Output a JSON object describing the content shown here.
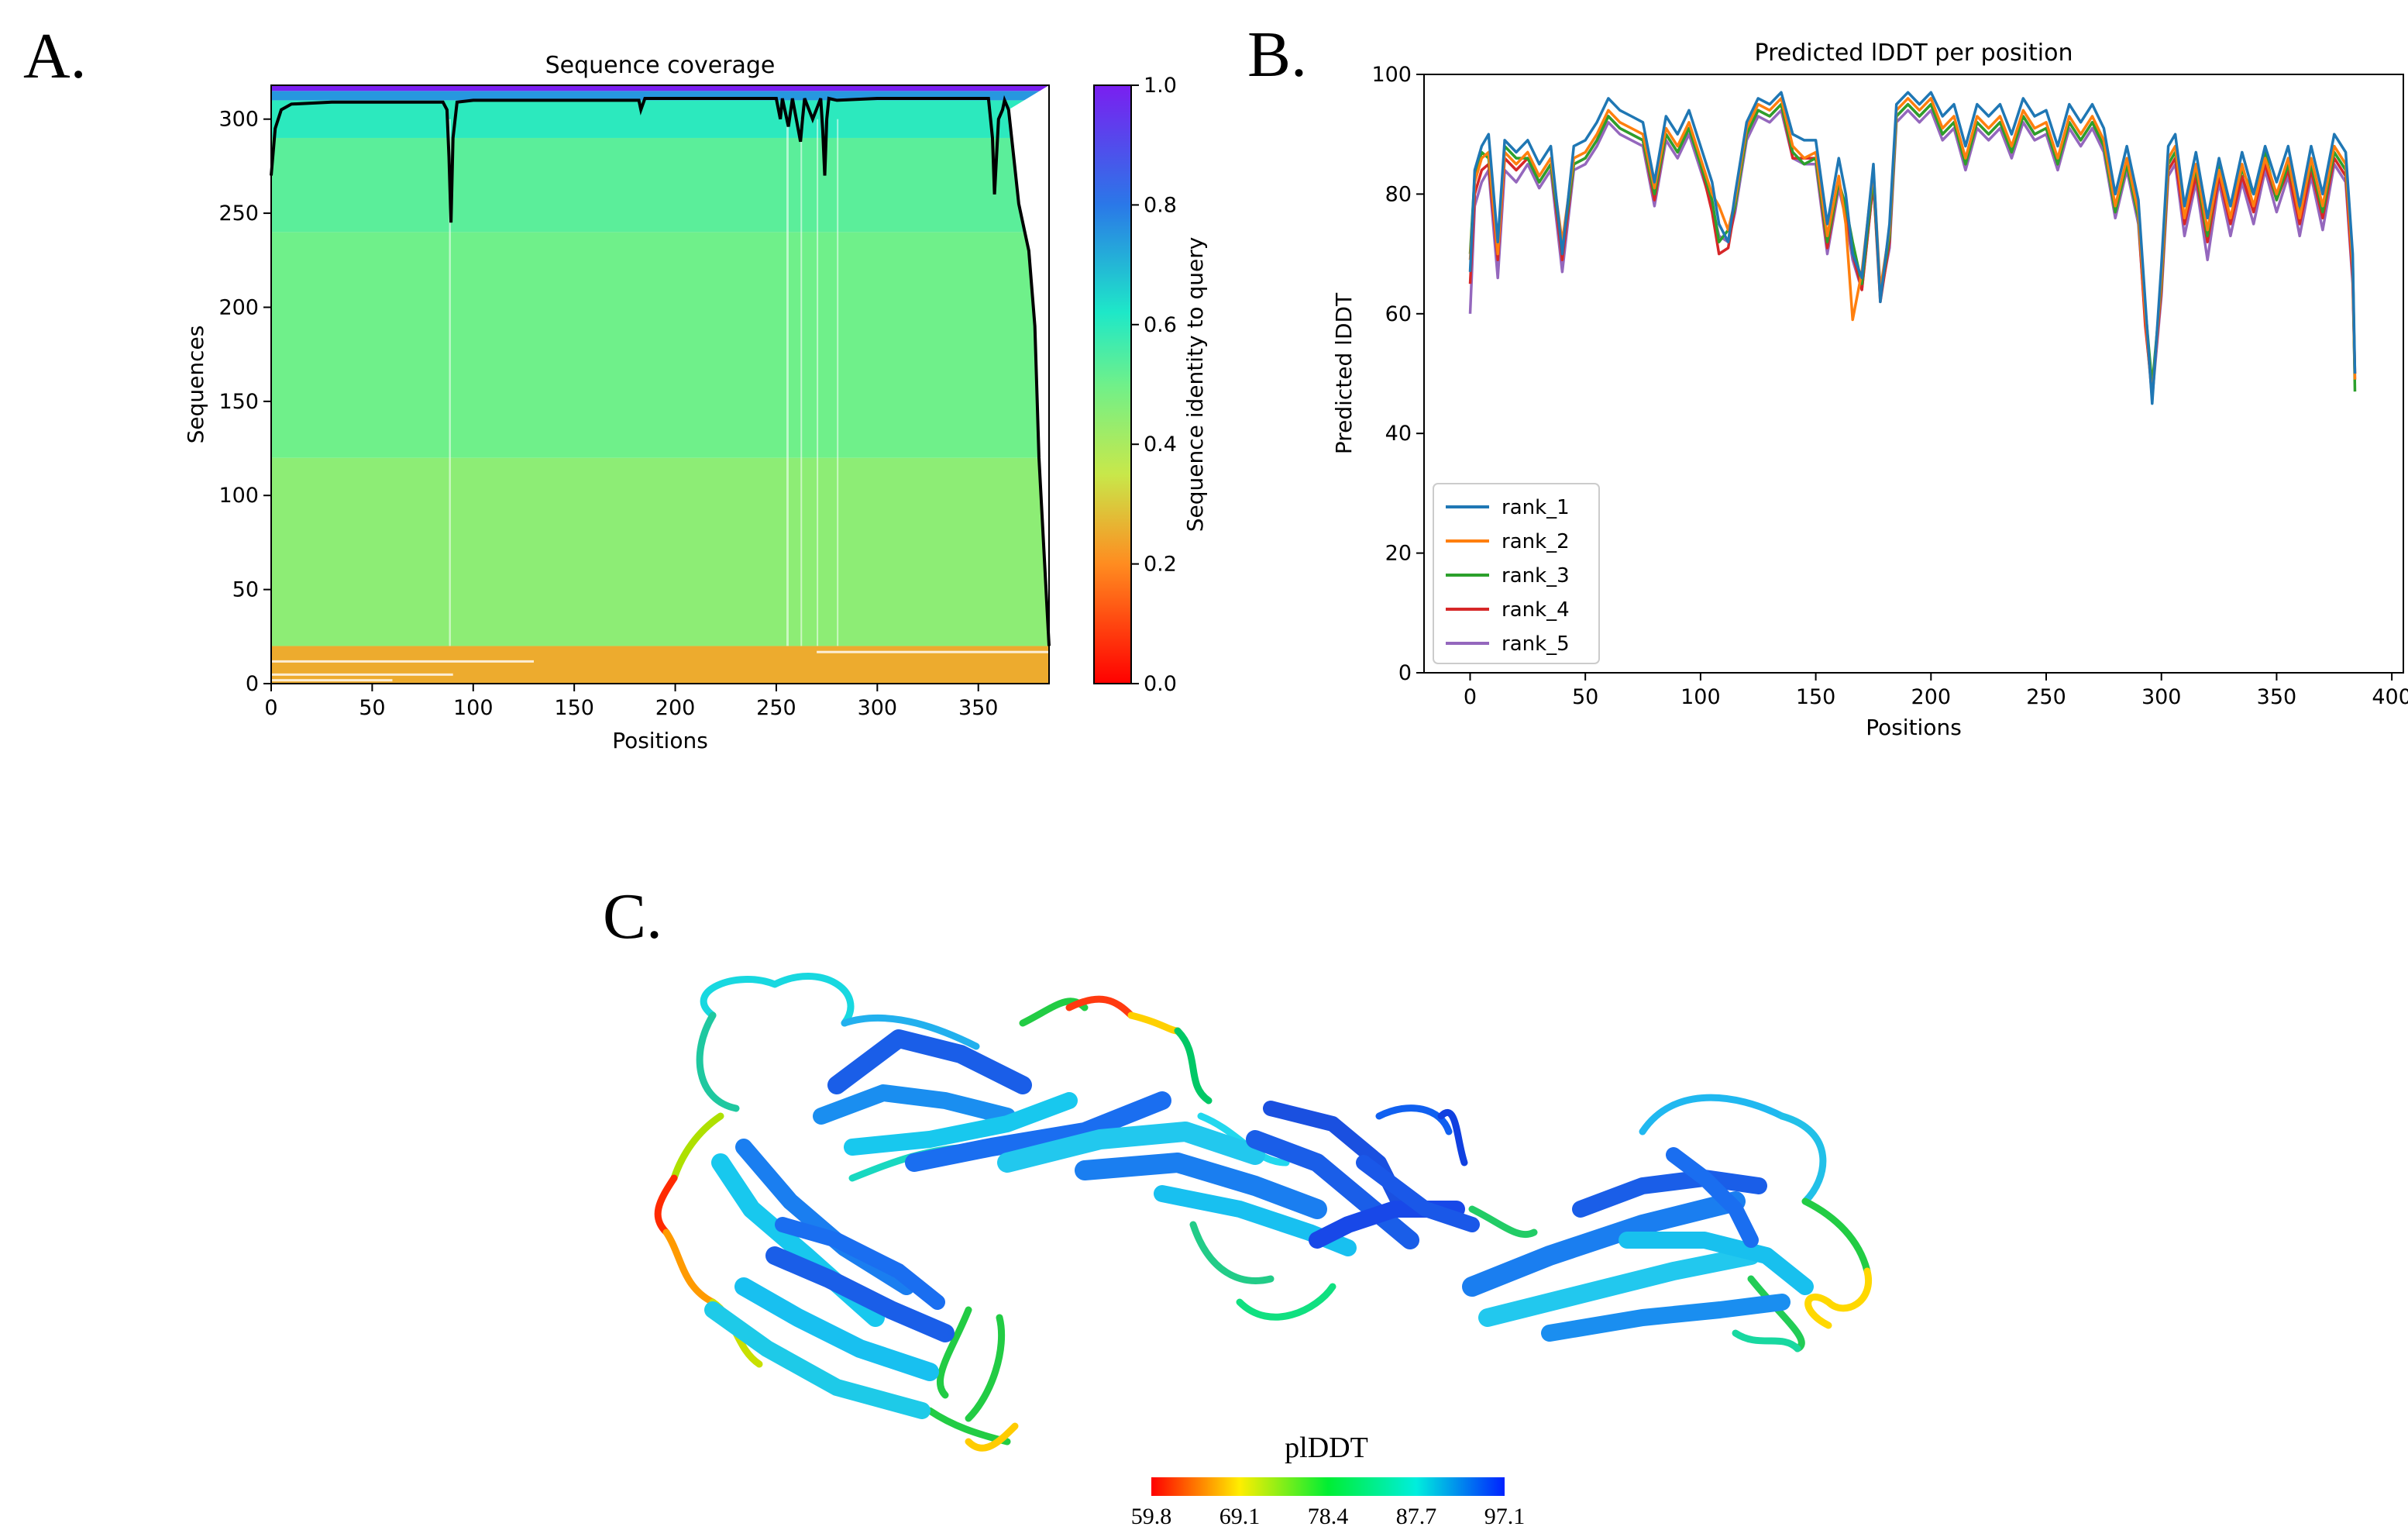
{
  "panel_labels": {
    "a": "A.",
    "b": "B.",
    "c": "C."
  },
  "chart_data": [
    {
      "id": "coverage",
      "type": "heatmap",
      "title": "Sequence coverage",
      "xlabel": "Positions",
      "ylabel": "Sequences",
      "xlim": [
        0,
        385
      ],
      "ylim": [
        0,
        318
      ],
      "xticks": [
        0,
        50,
        100,
        150,
        200,
        250,
        300,
        350
      ],
      "yticks": [
        0,
        50,
        100,
        150,
        200,
        250,
        300
      ],
      "bands": [
        {
          "from": 0,
          "to": 20,
          "identity": 0.25
        },
        {
          "from": 20,
          "to": 120,
          "identity": 0.45
        },
        {
          "from": 120,
          "to": 240,
          "identity": 0.5
        },
        {
          "from": 240,
          "to": 290,
          "identity": 0.53
        },
        {
          "from": 290,
          "to": 310,
          "identity": 0.6
        },
        {
          "from": 310,
          "to": 315,
          "identity": 0.75
        },
        {
          "from": 315,
          "to": 318,
          "identity": 1.0
        }
      ],
      "coverage_line": {
        "x": [
          0,
          2,
          5,
          10,
          30,
          85,
          87,
          88,
          89,
          90,
          92,
          100,
          150,
          182,
          183,
          185,
          250,
          252,
          253,
          256,
          258,
          262,
          263,
          264,
          268,
          272,
          273,
          274,
          275,
          276,
          280,
          300,
          320,
          355,
          357,
          358,
          360,
          362,
          363,
          365,
          368,
          370,
          373,
          375,
          378,
          380,
          383,
          385
        ],
        "y": [
          270,
          295,
          305,
          308,
          309,
          309,
          305,
          280,
          245,
          290,
          309,
          310,
          310,
          310,
          305,
          311,
          311,
          300,
          311,
          296,
          311,
          288,
          300,
          311,
          300,
          311,
          294,
          270,
          300,
          311,
          310,
          311,
          311,
          311,
          290,
          260,
          300,
          305,
          310,
          305,
          275,
          255,
          240,
          230,
          190,
          120,
          60,
          20
        ]
      },
      "colorbar": {
        "label": "Sequence identity to query",
        "ticks": [
          "0.0",
          "0.2",
          "0.4",
          "0.6",
          "0.8",
          "1.0"
        ]
      }
    },
    {
      "id": "plddt",
      "type": "line",
      "title": "Predicted lDDT per position",
      "xlabel": "Positions",
      "ylabel": "Predicted lDDT",
      "xlim": [
        -20,
        405
      ],
      "ylim": [
        0,
        100
      ],
      "xticks": [
        0,
        50,
        100,
        150,
        200,
        250,
        300,
        350,
        400
      ],
      "yticks": [
        0,
        20,
        40,
        60,
        80,
        100
      ],
      "x": [
        0,
        2,
        5,
        8,
        12,
        15,
        20,
        25,
        30,
        35,
        40,
        45,
        50,
        55,
        60,
        65,
        70,
        75,
        80,
        85,
        90,
        95,
        100,
        105,
        108,
        112,
        115,
        120,
        125,
        130,
        135,
        140,
        145,
        150,
        155,
        160,
        163,
        166,
        170,
        175,
        178,
        182,
        185,
        190,
        195,
        200,
        205,
        210,
        215,
        220,
        225,
        230,
        235,
        240,
        245,
        250,
        255,
        260,
        265,
        270,
        275,
        280,
        285,
        290,
        293,
        296,
        300,
        303,
        306,
        310,
        315,
        320,
        325,
        330,
        335,
        340,
        345,
        350,
        355,
        360,
        365,
        370,
        375,
        380,
        383,
        384
      ],
      "series": [
        {
          "name": "rank_1",
          "color": "#1f77b4",
          "values": [
            67,
            84,
            88,
            90,
            72,
            89,
            87,
            89,
            85,
            88,
            70,
            88,
            89,
            92,
            96,
            94,
            93,
            92,
            82,
            93,
            90,
            94,
            88,
            82,
            75,
            72,
            80,
            92,
            96,
            95,
            97,
            90,
            89,
            89,
            75,
            86,
            80,
            70,
            66,
            85,
            62,
            75,
            95,
            97,
            95,
            97,
            93,
            95,
            88,
            95,
            93,
            95,
            90,
            96,
            93,
            94,
            88,
            95,
            92,
            95,
            91,
            80,
            88,
            79,
            62,
            45,
            68,
            88,
            90,
            78,
            87,
            76,
            86,
            78,
            87,
            80,
            88,
            82,
            88,
            78,
            88,
            80,
            90,
            87,
            70,
            50
          ]
        },
        {
          "name": "rank_2",
          "color": "#ff7f0e",
          "values": [
            69,
            82,
            86,
            87,
            70,
            87,
            85,
            87,
            83,
            86,
            72,
            86,
            87,
            90,
            94,
            92,
            91,
            90,
            81,
            91,
            88,
            92,
            86,
            80,
            78,
            74,
            79,
            91,
            95,
            94,
            96,
            88,
            86,
            87,
            73,
            83,
            75,
            59,
            67,
            84,
            64,
            74,
            94,
            96,
            94,
            96,
            91,
            93,
            86,
            93,
            91,
            93,
            88,
            94,
            91,
            92,
            86,
            93,
            90,
            93,
            89,
            78,
            86,
            77,
            60,
            46,
            66,
            86,
            88,
            76,
            85,
            74,
            84,
            76,
            85,
            78,
            86,
            80,
            86,
            76,
            86,
            78,
            88,
            85,
            68,
            49
          ]
        },
        {
          "name": "rank_3",
          "color": "#2ca02c",
          "values": [
            70,
            83,
            87,
            86,
            71,
            88,
            86,
            86,
            82,
            85,
            71,
            85,
            86,
            89,
            93,
            91,
            90,
            89,
            80,
            90,
            87,
            91,
            85,
            79,
            72,
            74,
            78,
            90,
            94,
            93,
            95,
            87,
            85,
            86,
            72,
            82,
            78,
            72,
            65,
            83,
            63,
            73,
            93,
            95,
            93,
            95,
            90,
            92,
            85,
            92,
            90,
            92,
            87,
            93,
            90,
            91,
            85,
            92,
            89,
            92,
            88,
            77,
            85,
            76,
            61,
            48,
            65,
            85,
            87,
            78,
            84,
            73,
            85,
            78,
            84,
            80,
            87,
            79,
            85,
            77,
            85,
            77,
            87,
            84,
            69,
            47
          ]
        },
        {
          "name": "rank_4",
          "color": "#d62728",
          "values": [
            65,
            80,
            84,
            85,
            69,
            86,
            84,
            86,
            82,
            85,
            69,
            85,
            86,
            89,
            93,
            91,
            90,
            89,
            79,
            90,
            87,
            91,
            85,
            77,
            70,
            71,
            78,
            90,
            94,
            93,
            95,
            86,
            86,
            86,
            71,
            82,
            77,
            70,
            64,
            82,
            62,
            72,
            93,
            95,
            93,
            95,
            90,
            92,
            85,
            92,
            90,
            92,
            87,
            93,
            90,
            91,
            85,
            92,
            89,
            92,
            88,
            77,
            85,
            76,
            58,
            47,
            64,
            84,
            86,
            75,
            83,
            72,
            83,
            75,
            83,
            77,
            85,
            79,
            84,
            75,
            84,
            76,
            86,
            83,
            66,
            50
          ]
        },
        {
          "name": "rank_5",
          "color": "#9467bd",
          "values": [
            60,
            78,
            82,
            84,
            66,
            84,
            82,
            85,
            81,
            84,
            67,
            84,
            85,
            88,
            92,
            90,
            89,
            88,
            78,
            89,
            86,
            90,
            84,
            78,
            73,
            72,
            77,
            89,
            93,
            92,
            94,
            86,
            85,
            85,
            70,
            81,
            76,
            69,
            64,
            82,
            63,
            71,
            92,
            94,
            92,
            94,
            89,
            91,
            84,
            91,
            89,
            91,
            86,
            92,
            89,
            90,
            84,
            91,
            88,
            91,
            87,
            76,
            84,
            75,
            59,
            46,
            63,
            83,
            85,
            73,
            82,
            69,
            82,
            73,
            82,
            75,
            84,
            77,
            83,
            73,
            83,
            74,
            85,
            82,
            65,
            49
          ]
        }
      ]
    },
    {
      "id": "structure-legend",
      "type": "colorbar",
      "title": "plDDT",
      "ticks": [
        "59.8",
        "69.1",
        "78.4",
        "87.7",
        "97.1"
      ]
    }
  ]
}
